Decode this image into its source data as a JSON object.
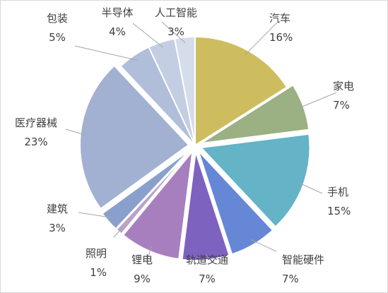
{
  "chart_data": {
    "type": "pie",
    "start_angle_deg": 0,
    "series": [
      {
        "label": "汽车",
        "value": 16,
        "pct_text": "16%",
        "color": "#cebd5f",
        "exploded": false
      },
      {
        "label": "家电",
        "value": 7,
        "pct_text": "7%",
        "color": "#9bb083",
        "exploded": true
      },
      {
        "label": "手机",
        "value": 15,
        "pct_text": "15%",
        "color": "#64b3c6",
        "exploded": true
      },
      {
        "label": "智能硬件",
        "value": 7,
        "pct_text": "7%",
        "color": "#6687d6",
        "exploded": true
      },
      {
        "label": "轨道交通",
        "value": 7,
        "pct_text": "7%",
        "color": "#7d62c0",
        "exploded": true
      },
      {
        "label": "锂电",
        "value": 9,
        "pct_text": "9%",
        "color": "#a77fbe",
        "exploded": true
      },
      {
        "label": "照明",
        "value": 1,
        "pct_text": "1%",
        "color": "#b9a3c8",
        "exploded": true
      },
      {
        "label": "建筑",
        "value": 3,
        "pct_text": "3%",
        "color": "#8aa0cc",
        "exploded": true
      },
      {
        "label": "医疗器械",
        "value": 23,
        "pct_text": "23%",
        "color": "#a2b0d2",
        "exploded": true
      },
      {
        "label": "包装",
        "value": 5,
        "pct_text": "5%",
        "color": "#b0bed9",
        "exploded": false
      },
      {
        "label": "半导体",
        "value": 4,
        "pct_text": "4%",
        "color": "#c4cee2",
        "exploded": false
      },
      {
        "label": "人工智能",
        "value": 3,
        "pct_text": "3%",
        "color": "#d5dcea",
        "exploded": false
      }
    ],
    "legend": "none"
  }
}
